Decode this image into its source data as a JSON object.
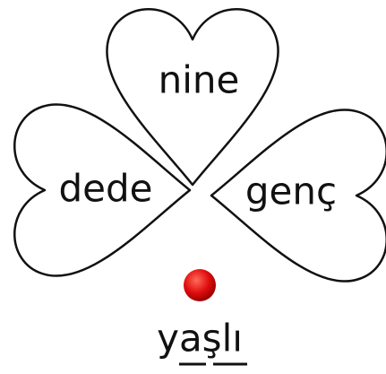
{
  "leaves": [
    {
      "label": "nine"
    },
    {
      "label": "dede"
    },
    {
      "label": "genç"
    }
  ],
  "word": "yaşlı"
}
